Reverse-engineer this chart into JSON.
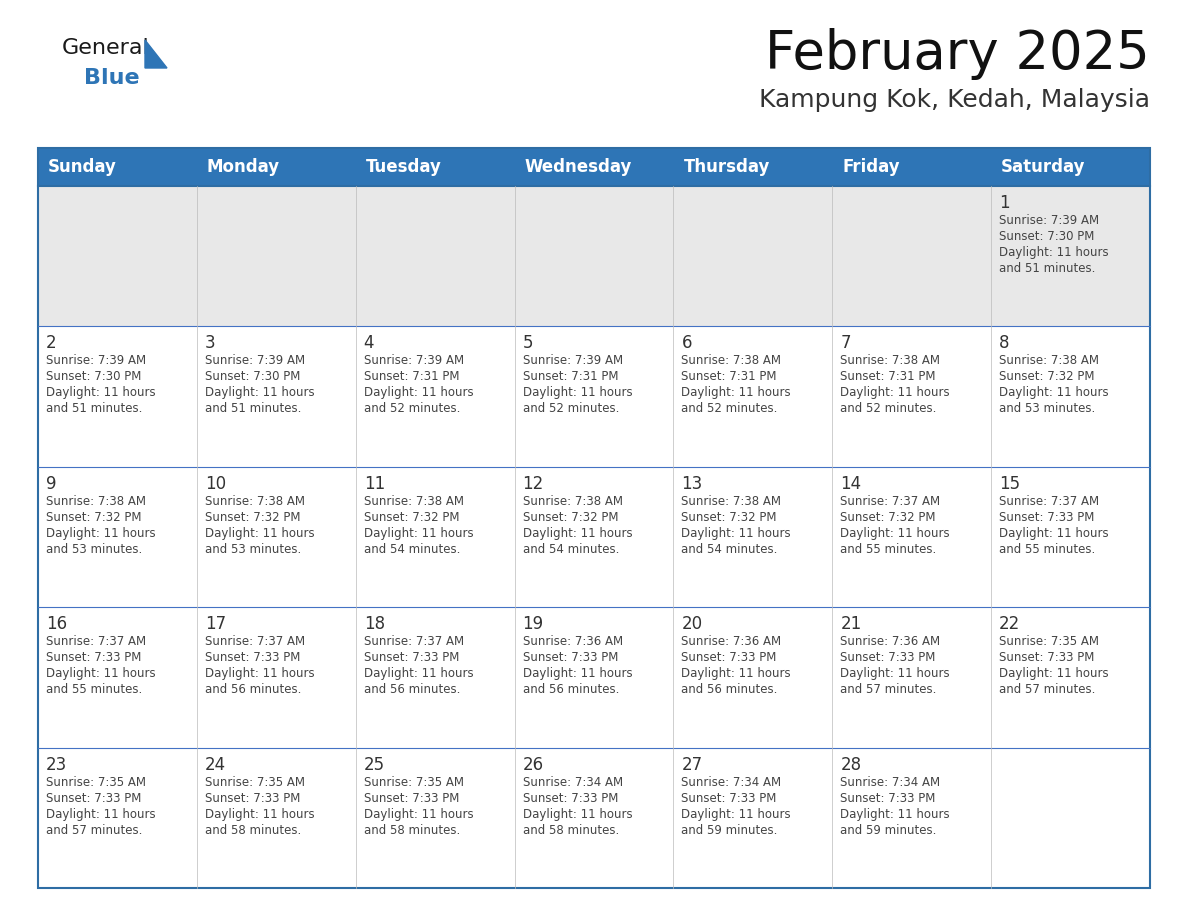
{
  "title": "February 2025",
  "subtitle": "Kampung Kok, Kedah, Malaysia",
  "header_bg": "#2E75B6",
  "header_text": "#FFFFFF",
  "row1_bg": "#E8E8E8",
  "cell_bg": "#FFFFFF",
  "border_color": "#2E6DA4",
  "row_line_color": "#4472C4",
  "text_color": "#444444",
  "day_number_color": "#333333",
  "days_of_week": [
    "Sunday",
    "Monday",
    "Tuesday",
    "Wednesday",
    "Thursday",
    "Friday",
    "Saturday"
  ],
  "logo_general_color": "#1A1A1A",
  "logo_blue_color": "#2E75B6",
  "calendar": [
    [
      null,
      null,
      null,
      null,
      null,
      null,
      {
        "day": 1,
        "sunrise": "7:39 AM",
        "sunset": "7:30 PM",
        "daylight": "11 hours and 51 minutes."
      }
    ],
    [
      {
        "day": 2,
        "sunrise": "7:39 AM",
        "sunset": "7:30 PM",
        "daylight": "11 hours and 51 minutes."
      },
      {
        "day": 3,
        "sunrise": "7:39 AM",
        "sunset": "7:30 PM",
        "daylight": "11 hours and 51 minutes."
      },
      {
        "day": 4,
        "sunrise": "7:39 AM",
        "sunset": "7:31 PM",
        "daylight": "11 hours and 52 minutes."
      },
      {
        "day": 5,
        "sunrise": "7:39 AM",
        "sunset": "7:31 PM",
        "daylight": "11 hours and 52 minutes."
      },
      {
        "day": 6,
        "sunrise": "7:38 AM",
        "sunset": "7:31 PM",
        "daylight": "11 hours and 52 minutes."
      },
      {
        "day": 7,
        "sunrise": "7:38 AM",
        "sunset": "7:31 PM",
        "daylight": "11 hours and 52 minutes."
      },
      {
        "day": 8,
        "sunrise": "7:38 AM",
        "sunset": "7:32 PM",
        "daylight": "11 hours and 53 minutes."
      }
    ],
    [
      {
        "day": 9,
        "sunrise": "7:38 AM",
        "sunset": "7:32 PM",
        "daylight": "11 hours and 53 minutes."
      },
      {
        "day": 10,
        "sunrise": "7:38 AM",
        "sunset": "7:32 PM",
        "daylight": "11 hours and 53 minutes."
      },
      {
        "day": 11,
        "sunrise": "7:38 AM",
        "sunset": "7:32 PM",
        "daylight": "11 hours and 54 minutes."
      },
      {
        "day": 12,
        "sunrise": "7:38 AM",
        "sunset": "7:32 PM",
        "daylight": "11 hours and 54 minutes."
      },
      {
        "day": 13,
        "sunrise": "7:38 AM",
        "sunset": "7:32 PM",
        "daylight": "11 hours and 54 minutes."
      },
      {
        "day": 14,
        "sunrise": "7:37 AM",
        "sunset": "7:32 PM",
        "daylight": "11 hours and 55 minutes."
      },
      {
        "day": 15,
        "sunrise": "7:37 AM",
        "sunset": "7:33 PM",
        "daylight": "11 hours and 55 minutes."
      }
    ],
    [
      {
        "day": 16,
        "sunrise": "7:37 AM",
        "sunset": "7:33 PM",
        "daylight": "11 hours and 55 minutes."
      },
      {
        "day": 17,
        "sunrise": "7:37 AM",
        "sunset": "7:33 PM",
        "daylight": "11 hours and 56 minutes."
      },
      {
        "day": 18,
        "sunrise": "7:37 AM",
        "sunset": "7:33 PM",
        "daylight": "11 hours and 56 minutes."
      },
      {
        "day": 19,
        "sunrise": "7:36 AM",
        "sunset": "7:33 PM",
        "daylight": "11 hours and 56 minutes."
      },
      {
        "day": 20,
        "sunrise": "7:36 AM",
        "sunset": "7:33 PM",
        "daylight": "11 hours and 56 minutes."
      },
      {
        "day": 21,
        "sunrise": "7:36 AM",
        "sunset": "7:33 PM",
        "daylight": "11 hours and 57 minutes."
      },
      {
        "day": 22,
        "sunrise": "7:35 AM",
        "sunset": "7:33 PM",
        "daylight": "11 hours and 57 minutes."
      }
    ],
    [
      {
        "day": 23,
        "sunrise": "7:35 AM",
        "sunset": "7:33 PM",
        "daylight": "11 hours and 57 minutes."
      },
      {
        "day": 24,
        "sunrise": "7:35 AM",
        "sunset": "7:33 PM",
        "daylight": "11 hours and 58 minutes."
      },
      {
        "day": 25,
        "sunrise": "7:35 AM",
        "sunset": "7:33 PM",
        "daylight": "11 hours and 58 minutes."
      },
      {
        "day": 26,
        "sunrise": "7:34 AM",
        "sunset": "7:33 PM",
        "daylight": "11 hours and 58 minutes."
      },
      {
        "day": 27,
        "sunrise": "7:34 AM",
        "sunset": "7:33 PM",
        "daylight": "11 hours and 59 minutes."
      },
      {
        "day": 28,
        "sunrise": "7:34 AM",
        "sunset": "7:33 PM",
        "daylight": "11 hours and 59 minutes."
      },
      null
    ]
  ]
}
